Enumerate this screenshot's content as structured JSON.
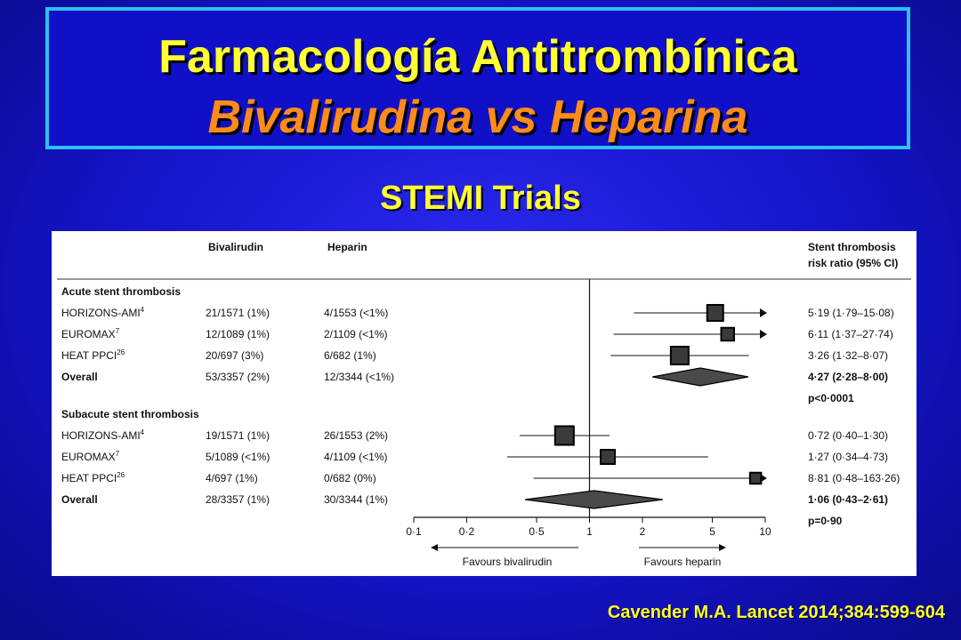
{
  "slide": {
    "title_line1": "Farmacología Antitrombínica",
    "title_line2": "Bivalirudina vs Heparina",
    "subtitle": "STEMI Trials",
    "citation": "Cavender M.A. Lancet 2014;384:599-604",
    "colors": {
      "title": "#ffff33",
      "title_italic": "#ff8c1a",
      "border": "#2ec0f0",
      "background": "#1414c8"
    }
  },
  "chart_data": {
    "type": "forest",
    "column_headers": {
      "bivalirudin": "Bivalirudin",
      "heparin": "Heparin",
      "ratio_line1": "Stent thrombosis",
      "ratio_line2": "risk ratio (95% CI)"
    },
    "x_scale": "log",
    "xlim": [
      0.1,
      10
    ],
    "x_ticks": [
      "0·1",
      "0·2",
      "0·5",
      "1",
      "2",
      "5",
      "10"
    ],
    "x_tick_values": [
      0.1,
      0.2,
      0.5,
      1,
      2,
      5,
      10
    ],
    "favours_left": "Favours bivalirudin",
    "favours_right": "Favours heparin",
    "groups": [
      {
        "title": "Acute stent thrombosis",
        "rows": [
          {
            "study": "HORIZONS-AMI",
            "ref": "4",
            "biv": "21/1571 (1%)",
            "hep": "4/1553 (<1%)",
            "rr_text": "5·19 (1·79–15·08)",
            "rr": 5.19,
            "lo": 1.79,
            "hi": 15.08,
            "weight": 1.0
          },
          {
            "study": "EUROMAX",
            "ref": "7",
            "biv": "12/1089 (1%)",
            "hep": "2/1109 (<1%)",
            "rr_text": "6·11 (1·37–27·74)",
            "rr": 6.11,
            "lo": 1.37,
            "hi": 27.74,
            "weight": 0.65
          },
          {
            "study": "HEAT PPCI",
            "ref": "26",
            "biv": "20/697 (3%)",
            "hep": "6/682 (1%)",
            "rr_text": "3·26 (1·32–8·07)",
            "rr": 3.26,
            "lo": 1.32,
            "hi": 8.07,
            "weight": 1.2
          }
        ],
        "overall": {
          "label": "Overall",
          "biv": "53/3357 (2%)",
          "hep": "12/3344 (<1%)",
          "rr_text": "4·27 (2·28–8·00)",
          "rr": 4.27,
          "lo": 2.28,
          "hi": 8.0,
          "p": "p<0·0001"
        }
      },
      {
        "title": "Subacute stent thrombosis",
        "rows": [
          {
            "study": "HORIZONS-AMI",
            "ref": "4",
            "biv": "19/1571 (1%)",
            "hep": "26/1553 (2%)",
            "rr_text": "0·72 (0·40–1·30)",
            "rr": 0.72,
            "lo": 0.4,
            "hi": 1.3,
            "weight": 1.3
          },
          {
            "study": "EUROMAX",
            "ref": "7",
            "biv": "5/1089 (<1%)",
            "hep": "4/1109 (<1%)",
            "rr_text": "1·27 (0·34–4·73)",
            "rr": 1.27,
            "lo": 0.34,
            "hi": 4.73,
            "weight": 0.8
          },
          {
            "study": "HEAT PPCI",
            "ref": "26",
            "biv": "4/697 (1%)",
            "hep": "0/682 (0%)",
            "rr_text": "8·81 (0·48–163·26)",
            "rr": 8.81,
            "lo": 0.48,
            "hi": 163.26,
            "weight": 0.45
          }
        ],
        "overall": {
          "label": "Overall",
          "biv": "28/3357 (1%)",
          "hep": "30/3344 (1%)",
          "rr_text": "1·06 (0·43–2·61)",
          "rr": 1.06,
          "lo": 0.43,
          "hi": 2.61,
          "p": "p=0·90"
        }
      }
    ]
  }
}
